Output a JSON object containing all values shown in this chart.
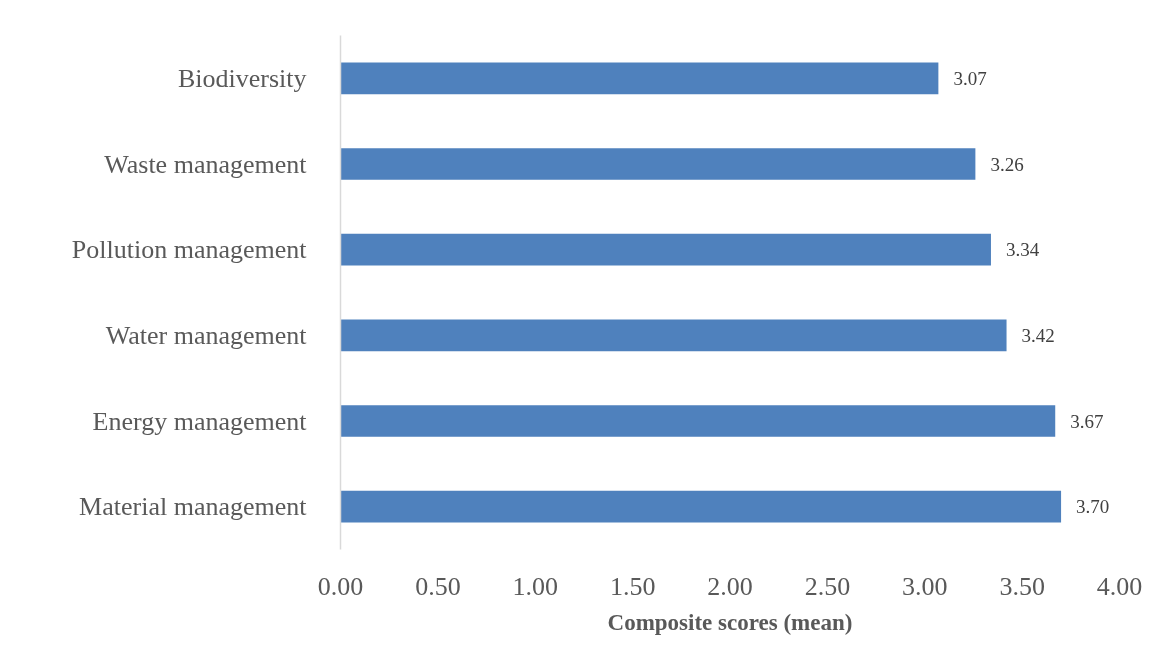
{
  "chart_data": {
    "type": "bar",
    "orientation": "horizontal",
    "xlabel": "Composite scores (mean)",
    "categories": [
      "Biodiversity",
      "Waste management",
      "Pollution management",
      "Water management",
      "Energy management",
      "Material management"
    ],
    "values": [
      3.07,
      3.26,
      3.34,
      3.42,
      3.67,
      3.7
    ],
    "value_labels": [
      "3.07",
      "3.26",
      "3.34",
      "3.42",
      "3.67",
      "3.70"
    ],
    "color": "#4f81bd",
    "xlim": [
      0,
      4
    ],
    "xticks": [
      {
        "value": 0,
        "label": "0.00"
      },
      {
        "value": 0.5,
        "label": "0.50"
      },
      {
        "value": 1,
        "label": "1.00"
      },
      {
        "value": 1.5,
        "label": "1.50"
      },
      {
        "value": 2,
        "label": "2.00"
      },
      {
        "value": 2.5,
        "label": "2.50"
      },
      {
        "value": 3,
        "label": "3.00"
      },
      {
        "value": 3.5,
        "label": "3.50"
      },
      {
        "value": 4,
        "label": "4.00"
      }
    ]
  }
}
